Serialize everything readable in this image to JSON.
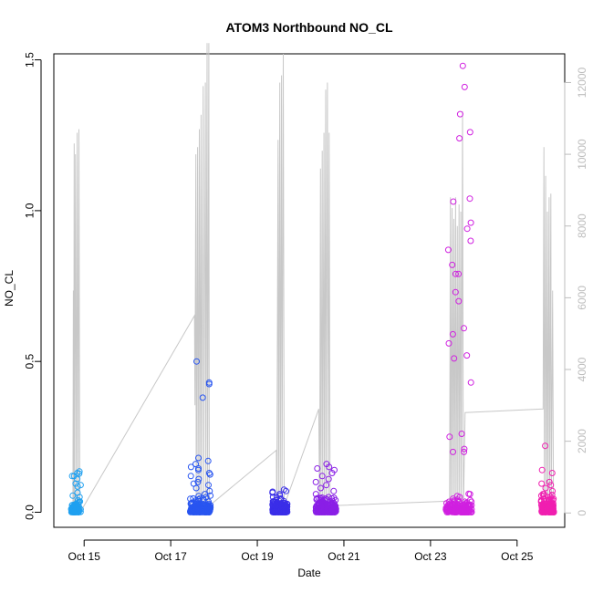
{
  "chart_data": {
    "type": "scatter",
    "title": "ATOM3 Northbound NO_CL",
    "xlabel": "Date",
    "ylabel": "NO_CL",
    "x_ticks": [
      "Oct 15",
      "Oct 17",
      "Oct 19",
      "Oct 21",
      "Oct 23",
      "Oct 25"
    ],
    "x_tick_days": [
      15,
      17,
      19,
      21,
      23,
      25
    ],
    "xlim_days": [
      14.3,
      26.1
    ],
    "y_left": {
      "lim": [
        -0.05,
        1.52
      ],
      "ticks": [
        "0.0",
        "0.5",
        "1.0",
        "1.5"
      ],
      "tick_values": [
        0,
        0.5,
        1.0,
        1.5
      ]
    },
    "y_right": {
      "lim": [
        -400,
        12800
      ],
      "ticks": [
        "0",
        "2000",
        "4000",
        "6000",
        "8000",
        "10000",
        "12000"
      ],
      "tick_values": [
        0,
        2000,
        4000,
        6000,
        8000,
        10000,
        12000
      ],
      "color": "#bdbdbd"
    },
    "secondary_series": {
      "color": "#c8c8c8",
      "points": [
        [
          14.74,
          0
        ],
        [
          14.75,
          6200
        ],
        [
          14.76,
          0
        ],
        [
          14.77,
          10300
        ],
        [
          14.78,
          0
        ],
        [
          14.8,
          10000
        ],
        [
          14.82,
          0
        ],
        [
          14.84,
          10600
        ],
        [
          14.86,
          0
        ],
        [
          14.88,
          10700
        ],
        [
          14.9,
          0
        ],
        [
          17.55,
          5500
        ],
        [
          17.56,
          3000
        ],
        [
          17.58,
          10000
        ],
        [
          17.59,
          0
        ],
        [
          17.62,
          10200
        ],
        [
          17.63,
          0
        ],
        [
          17.66,
          10700
        ],
        [
          17.67,
          0
        ],
        [
          17.7,
          11100
        ],
        [
          17.71,
          0
        ],
        [
          17.75,
          11900
        ],
        [
          17.76,
          0
        ],
        [
          17.8,
          12000
        ],
        [
          17.81,
          0
        ],
        [
          17.84,
          13100
        ],
        [
          17.85,
          0
        ],
        [
          17.88,
          13100
        ],
        [
          17.89,
          200
        ],
        [
          19.44,
          1750
        ],
        [
          19.45,
          0
        ],
        [
          19.48,
          10400
        ],
        [
          19.49,
          0
        ],
        [
          19.52,
          12000
        ],
        [
          19.53,
          0
        ],
        [
          19.56,
          12200
        ],
        [
          19.57,
          0
        ],
        [
          19.6,
          12800
        ],
        [
          19.62,
          200
        ],
        [
          20.42,
          2900
        ],
        [
          20.44,
          0
        ],
        [
          20.46,
          9600
        ],
        [
          20.47,
          0
        ],
        [
          20.5,
          10100
        ],
        [
          20.51,
          0
        ],
        [
          20.54,
          10600
        ],
        [
          20.55,
          0
        ],
        [
          20.58,
          11800
        ],
        [
          20.59,
          0
        ],
        [
          20.62,
          12000
        ],
        [
          20.64,
          0
        ],
        [
          20.66,
          10600
        ],
        [
          20.68,
          200
        ],
        [
          23.44,
          330
        ],
        [
          23.46,
          8800
        ],
        [
          23.47,
          0
        ],
        [
          23.5,
          8500
        ],
        [
          23.51,
          0
        ],
        [
          23.54,
          8200
        ],
        [
          23.55,
          0
        ],
        [
          23.58,
          8800
        ],
        [
          23.59,
          0
        ],
        [
          23.62,
          8000
        ],
        [
          23.63,
          0
        ],
        [
          23.66,
          8600
        ],
        [
          23.67,
          0
        ],
        [
          23.7,
          8400
        ],
        [
          23.71,
          0
        ],
        [
          23.74,
          11200
        ],
        [
          23.76,
          0
        ],
        [
          23.8,
          2800
        ],
        [
          25.6,
          2900
        ],
        [
          25.62,
          10200
        ],
        [
          25.63,
          0
        ],
        [
          25.66,
          9400
        ],
        [
          25.67,
          0
        ],
        [
          25.7,
          8400
        ],
        [
          25.71,
          0
        ],
        [
          25.74,
          8800
        ],
        [
          25.75,
          0
        ],
        [
          25.78,
          8900
        ],
        [
          25.79,
          0
        ],
        [
          25.82,
          6200
        ],
        [
          25.84,
          100
        ]
      ]
    },
    "series": [
      {
        "day_range": [
          14.7,
          14.92
        ],
        "color": "#1fa0f0",
        "count": 60,
        "values": [
          0.13,
          0.12,
          0.11,
          0.09,
          0.085,
          0.065,
          0.055,
          0.05,
          0.04,
          0.035,
          0.03,
          0.025,
          0.02,
          0.015,
          0.01,
          0.005,
          0.0,
          0.0,
          0.135,
          0.128,
          0.12,
          0.095
        ]
      },
      {
        "day_range": [
          17.45,
          17.92
        ],
        "color": "#2855f0",
        "count": 150,
        "values": [
          0.5,
          0.43,
          0.425,
          0.38,
          0.18,
          0.17,
          0.16,
          0.15,
          0.145,
          0.14,
          0.13,
          0.125,
          0.12,
          0.11,
          0.1,
          0.095,
          0.09,
          0.08,
          0.07,
          0.06,
          0.055,
          0.05,
          0.045,
          0.04,
          0.035
        ]
      },
      {
        "day_range": [
          19.35,
          19.7
        ],
        "color": "#3a2ee8",
        "count": 150,
        "values": [
          0.075,
          0.07,
          0.068,
          0.065,
          0.06,
          0.055,
          0.05,
          0.045,
          0.04,
          0.035,
          0.03,
          0.025,
          0.02,
          0.015,
          0.01
        ]
      },
      {
        "day_range": [
          20.35,
          20.82
        ],
        "color": "#8a1fe6",
        "count": 150,
        "values": [
          0.16,
          0.15,
          0.145,
          0.14,
          0.13,
          0.12,
          0.11,
          0.1,
          0.09,
          0.08,
          0.07,
          0.06,
          0.05,
          0.04,
          0.035,
          0.03,
          0.025,
          0.02,
          0.015
        ]
      },
      {
        "day_range": [
          23.35,
          23.95
        ],
        "color": "#d020e0",
        "count": 150,
        "values": [
          1.48,
          1.41,
          1.32,
          1.26,
          1.24,
          1.04,
          1.03,
          0.96,
          0.94,
          0.9,
          0.87,
          0.82,
          0.79,
          0.79,
          0.73,
          0.7,
          0.61,
          0.59,
          0.56,
          0.52,
          0.51,
          0.43,
          0.26,
          0.25,
          0.21,
          0.2,
          0.2,
          0.06,
          0.05,
          0.045,
          0.04,
          0.035,
          0.03,
          0.025,
          0.02
        ]
      },
      {
        "day_range": [
          25.55,
          25.85
        ],
        "color": "#f01fb0",
        "count": 120,
        "values": [
          0.22,
          0.14,
          0.13,
          0.1,
          0.095,
          0.09,
          0.08,
          0.07,
          0.06,
          0.055,
          0.05,
          0.045,
          0.04,
          0.035,
          0.03,
          0.025,
          0.02,
          0.015,
          0.01,
          0.005,
          0.0
        ]
      }
    ]
  }
}
